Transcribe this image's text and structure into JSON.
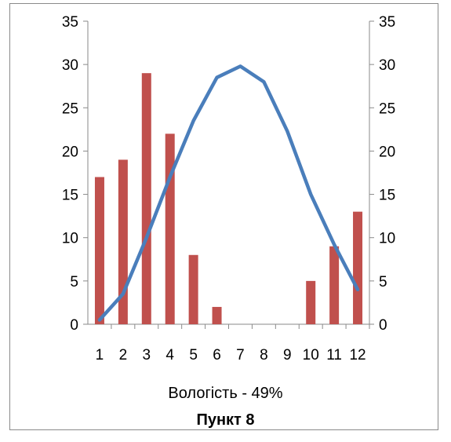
{
  "chart_data": {
    "type": "bar+line",
    "categories": [
      "1",
      "2",
      "3",
      "4",
      "5",
      "6",
      "7",
      "8",
      "9",
      "10",
      "11",
      "12"
    ],
    "series": [
      {
        "kind": "bar",
        "values": [
          17,
          19,
          29,
          22,
          8,
          2,
          0,
          0,
          0,
          5,
          9,
          13
        ],
        "color": "#c0504d"
      },
      {
        "kind": "line",
        "values": [
          0.5,
          3.5,
          10,
          17,
          23.5,
          28.5,
          29.8,
          28,
          22.3,
          15,
          9.2,
          4
        ],
        "color": "#4a7ebb"
      }
    ],
    "ylim": [
      0,
      35
    ],
    "y_ticks": [
      "0",
      "5",
      "10",
      "15",
      "20",
      "25",
      "30",
      "35"
    ],
    "y2_ticks": [
      "0",
      "5",
      "10",
      "15",
      "20",
      "25",
      "30",
      "35"
    ],
    "grid": false,
    "caption": "Вологість - 49%",
    "subcaption": "Пункт 8"
  }
}
